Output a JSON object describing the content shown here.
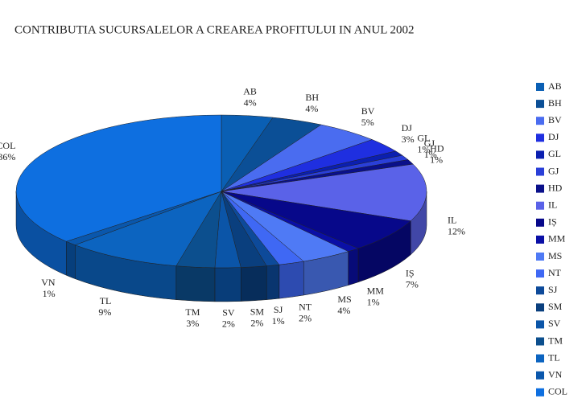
{
  "chart_data": {
    "type": "pie",
    "title": "CONTRIBUTIA SUCURSALELOR A CREAREA PROFITULUI IN ANUL 2002",
    "categories": [
      "AB",
      "BH",
      "BV",
      "DJ",
      "GL",
      "GJ",
      "HD",
      "IL",
      "IȘ",
      "MM",
      "MS",
      "NT",
      "SJ",
      "SM",
      "SV",
      "TM",
      "TL",
      "VN",
      "COL"
    ],
    "values": [
      4,
      4,
      5,
      3,
      1,
      1,
      1,
      12,
      7,
      1,
      4,
      2,
      1,
      2,
      2,
      3,
      9,
      1,
      36
    ],
    "value_labels": [
      "4%",
      "4%",
      "5%",
      "3%",
      "1%",
      "1%",
      "1%",
      "12%",
      "7%",
      "1%",
      "4%",
      "2%",
      "1%",
      "2%",
      "2%",
      "3%",
      "9%",
      "1%",
      "36%"
    ],
    "colors": [
      "#0a5fb4",
      "#0b4f96",
      "#4a6cf0",
      "#1f2fe0",
      "#0b1fb0",
      "#2a3fd8",
      "#0a108a",
      "#5a62e8",
      "#07088a",
      "#0a0fa6",
      "#4f7af5",
      "#3f68f4",
      "#0d4a9a",
      "#0a3f7e",
      "#0b55a8",
      "#0c4f8e",
      "#0c64c0",
      "#0a57ac",
      "#0e6fe0"
    ],
    "legend": "right"
  }
}
